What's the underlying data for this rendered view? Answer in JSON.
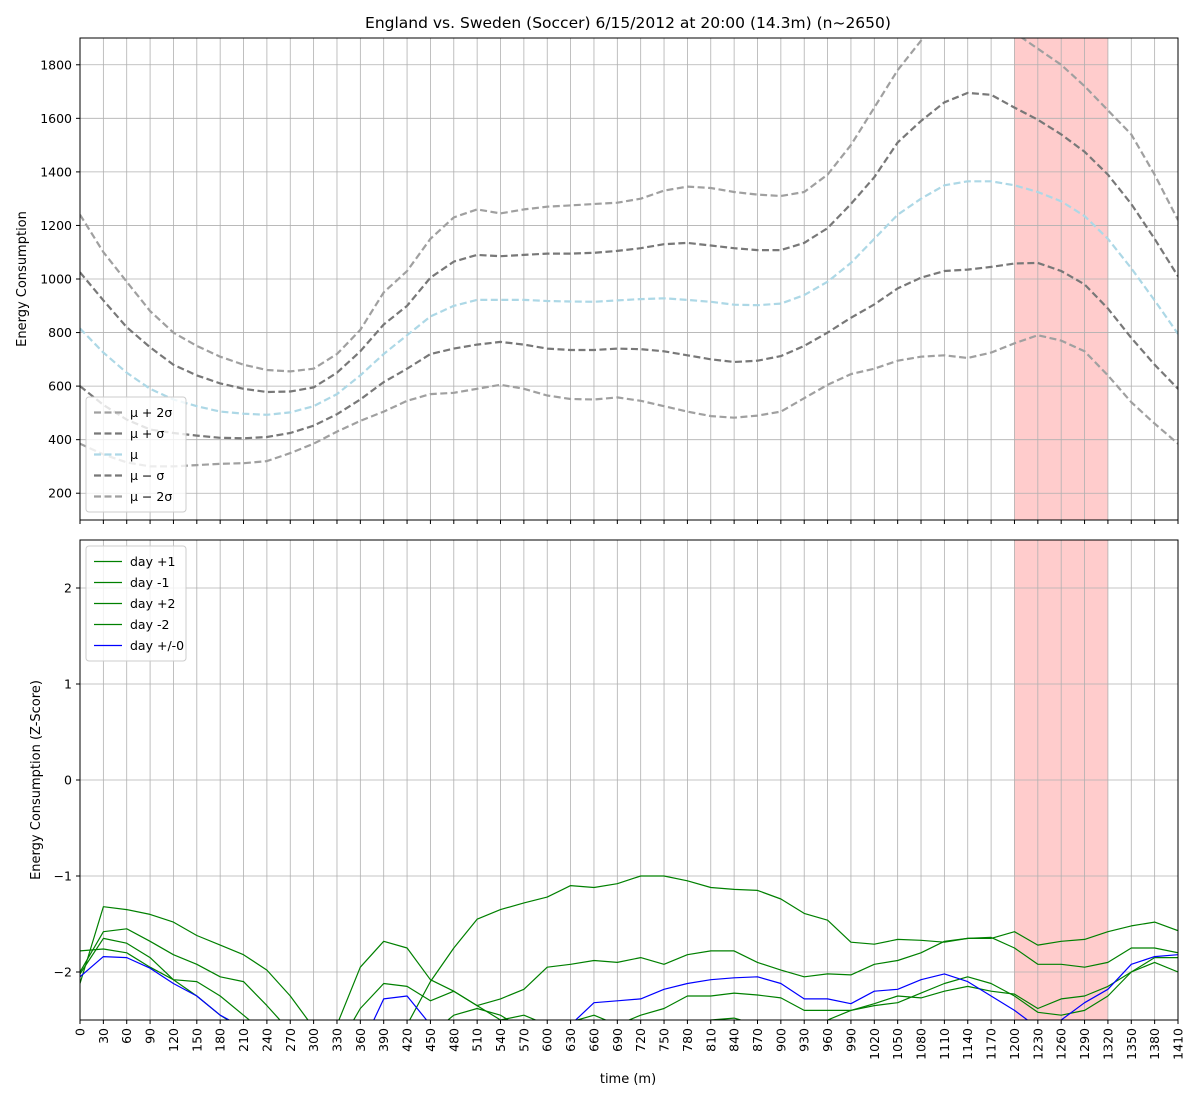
{
  "chart_data": [
    {
      "type": "line",
      "title": "England vs. Sweden (Soccer) 6/15/2012 at 20:00 (14.3m) (n~2650)",
      "xlabel": "",
      "ylabel": "Energy Consumption",
      "xlim": [
        0,
        1410
      ],
      "ylim": [
        100,
        1900
      ],
      "yticks": [
        200,
        400,
        600,
        800,
        1000,
        1200,
        1400,
        1600,
        1800
      ],
      "grid": true,
      "legend_position": "lower-left",
      "highlight_span": [
        1200,
        1320
      ],
      "x": [
        0,
        30,
        60,
        90,
        120,
        150,
        180,
        210,
        240,
        270,
        300,
        330,
        360,
        390,
        420,
        450,
        480,
        510,
        540,
        570,
        600,
        630,
        660,
        690,
        720,
        750,
        780,
        810,
        840,
        870,
        900,
        930,
        960,
        990,
        1020,
        1050,
        1080,
        1110,
        1140,
        1170,
        1200,
        1230,
        1260,
        1290,
        1320,
        1350,
        1380,
        1410
      ],
      "series": [
        {
          "name": "μ + 2σ",
          "color": "#a0a0a0",
          "style": "dashed",
          "values": [
            1240,
            1100,
            990,
            880,
            800,
            750,
            710,
            680,
            660,
            655,
            665,
            720,
            810,
            950,
            1030,
            1150,
            1230,
            1260,
            1245,
            1260,
            1270,
            1275,
            1280,
            1285,
            1300,
            1330,
            1345,
            1340,
            1325,
            1315,
            1310,
            1325,
            1390,
            1500,
            1640,
            1780,
            1890,
            1980,
            2040,
            2030,
            1920,
            1860,
            1800,
            1720,
            1630,
            1540,
            1390,
            1220
          ]
        },
        {
          "name": "μ + σ",
          "color": "#787878",
          "style": "dashed",
          "values": [
            1025,
            920,
            820,
            745,
            680,
            640,
            610,
            590,
            578,
            580,
            595,
            650,
            730,
            830,
            900,
            1005,
            1065,
            1090,
            1085,
            1090,
            1095,
            1095,
            1098,
            1105,
            1115,
            1130,
            1135,
            1125,
            1115,
            1108,
            1108,
            1135,
            1190,
            1280,
            1380,
            1510,
            1590,
            1660,
            1695,
            1688,
            1640,
            1595,
            1540,
            1475,
            1390,
            1280,
            1150,
            1010
          ]
        },
        {
          "name": "μ",
          "color": "#add8e6",
          "style": "dashed",
          "values": [
            815,
            725,
            650,
            590,
            550,
            525,
            505,
            497,
            493,
            502,
            525,
            570,
            640,
            720,
            790,
            860,
            900,
            922,
            922,
            922,
            918,
            916,
            915,
            920,
            925,
            928,
            922,
            915,
            904,
            902,
            908,
            940,
            990,
            1060,
            1150,
            1240,
            1300,
            1350,
            1365,
            1365,
            1350,
            1325,
            1290,
            1235,
            1150,
            1040,
            920,
            795
          ]
        },
        {
          "name": "μ − σ",
          "color": "#787878",
          "style": "dashed",
          "values": [
            600,
            530,
            475,
            438,
            425,
            415,
            407,
            405,
            410,
            425,
            452,
            495,
            550,
            615,
            665,
            720,
            740,
            755,
            765,
            755,
            740,
            735,
            735,
            740,
            738,
            730,
            715,
            700,
            690,
            695,
            712,
            750,
            800,
            855,
            905,
            965,
            1005,
            1030,
            1035,
            1045,
            1058,
            1060,
            1030,
            980,
            890,
            780,
            680,
            590
          ]
        },
        {
          "name": "μ − 2σ",
          "color": "#a0a0a0",
          "style": "dashed",
          "values": [
            385,
            345,
            315,
            300,
            300,
            305,
            310,
            312,
            320,
            350,
            385,
            430,
            470,
            505,
            545,
            570,
            575,
            590,
            605,
            590,
            565,
            552,
            550,
            558,
            545,
            525,
            505,
            488,
            482,
            490,
            505,
            555,
            605,
            645,
            665,
            695,
            710,
            715,
            705,
            725,
            760,
            790,
            770,
            730,
            640,
            540,
            460,
            385
          ]
        }
      ]
    },
    {
      "type": "line",
      "title": "",
      "xlabel": "time (m)",
      "ylabel": "Energy Consumption (Z-Score)",
      "xlim": [
        0,
        1410
      ],
      "ylim": [
        -2.5,
        2.5
      ],
      "yticks": [
        -2,
        -1,
        0,
        1,
        2
      ],
      "xticks": [
        0,
        30,
        60,
        90,
        120,
        150,
        180,
        210,
        240,
        270,
        300,
        330,
        360,
        390,
        420,
        450,
        480,
        510,
        540,
        570,
        600,
        630,
        660,
        690,
        720,
        750,
        780,
        810,
        840,
        870,
        900,
        930,
        960,
        990,
        1020,
        1050,
        1080,
        1110,
        1140,
        1170,
        1200,
        1230,
        1260,
        1290,
        1320,
        1350,
        1380,
        1410
      ],
      "xtick_labels": [
        "0",
        "30",
        "60",
        "90",
        "120",
        "150",
        "180",
        "210",
        "240",
        "270",
        "300",
        "330",
        "360",
        "390",
        "420",
        "450",
        "480",
        "510",
        "540",
        "570",
        "600",
        "630",
        "660",
        "690",
        "720",
        "750",
        "780",
        "810",
        "840",
        "870",
        "900",
        "930",
        "960",
        "990",
        "1020",
        "1050",
        "1080",
        "1110",
        "1140",
        "1170",
        "1200",
        "1230",
        "1260",
        "1290",
        "1320",
        "1350",
        "1380",
        "1410"
      ],
      "grid": true,
      "legend_position": "upper-left",
      "highlight_span": [
        1200,
        1320
      ],
      "x": [
        0,
        30,
        60,
        90,
        120,
        150,
        180,
        210,
        240,
        270,
        300,
        330,
        360,
        390,
        420,
        450,
        480,
        510,
        540,
        570,
        600,
        630,
        660,
        690,
        720,
        750,
        780,
        810,
        840,
        870,
        900,
        930,
        960,
        990,
        1020,
        1050,
        1080,
        1110,
        1140,
        1170,
        1200,
        1230,
        1260,
        1290,
        1320,
        1350,
        1380,
        1410
      ],
      "series": [
        {
          "name": "day +1",
          "color": "#008000",
          "values": [
            -1.78,
            -1.76,
            -1.8,
            -1.95,
            -2.08,
            -2.25,
            -2.45,
            -2.6,
            -2.8,
            -2.9,
            -2.95,
            -2.8,
            -2.38,
            -2.12,
            -2.15,
            -2.3,
            -2.2,
            -2.35,
            -2.5,
            -2.45,
            -2.55,
            -2.52,
            -2.45,
            -2.55,
            -2.45,
            -2.38,
            -2.25,
            -2.25,
            -2.22,
            -2.24,
            -2.27,
            -2.4,
            -2.4,
            -2.4,
            -2.33,
            -2.25,
            -2.27,
            -2.2,
            -2.15,
            -2.2,
            -2.23,
            -2.38,
            -2.28,
            -2.25,
            -2.15,
            -2.0,
            -1.9,
            -2.0
          ]
        },
        {
          "name": "day -1",
          "color": "#008000",
          "values": [
            -2.12,
            -1.32,
            -1.35,
            -1.4,
            -1.48,
            -1.62,
            -1.72,
            -1.82,
            -1.98,
            -2.25,
            -2.58,
            -2.55,
            -1.95,
            -1.68,
            -1.75,
            -2.08,
            -2.2,
            -2.35,
            -2.28,
            -2.18,
            -1.95,
            -1.92,
            -1.88,
            -1.9,
            -1.85,
            -1.92,
            -1.82,
            -1.78,
            -1.78,
            -1.9,
            -1.98,
            -2.05,
            -2.02,
            -2.03,
            -1.92,
            -1.88,
            -1.8,
            -1.68,
            -1.65,
            -1.65,
            -1.58,
            -1.72,
            -1.68,
            -1.66,
            -1.58,
            -1.52,
            -1.48,
            -1.57
          ]
        },
        {
          "name": "day +2",
          "color": "#008000",
          "values": [
            -2.0,
            -1.58,
            -1.55,
            -1.68,
            -1.82,
            -1.92,
            -2.05,
            -2.1,
            -2.35,
            -2.62,
            -2.75,
            -2.9,
            -2.9,
            -2.8,
            -2.55,
            -2.1,
            -1.75,
            -1.45,
            -1.35,
            -1.28,
            -1.22,
            -1.1,
            -1.12,
            -1.08,
            -1.0,
            -1.0,
            -1.05,
            -1.12,
            -1.14,
            -1.15,
            -1.24,
            -1.39,
            -1.46,
            -1.69,
            -1.71,
            -1.66,
            -1.67,
            -1.69,
            -1.65,
            -1.64,
            -1.75,
            -1.92,
            -1.92,
            -1.95,
            -1.9,
            -1.75,
            -1.75,
            -1.8
          ]
        },
        {
          "name": "day -2",
          "color": "#008000",
          "values": [
            -2.02,
            -1.65,
            -1.7,
            -1.85,
            -2.08,
            -2.1,
            -2.25,
            -2.45,
            -2.65,
            -2.85,
            -2.95,
            -2.85,
            -2.9,
            -2.95,
            -2.7,
            -2.65,
            -2.45,
            -2.38,
            -2.45,
            -2.6,
            -2.7,
            -2.68,
            -2.62,
            -2.62,
            -2.58,
            -2.58,
            -2.55,
            -2.5,
            -2.48,
            -2.55,
            -2.6,
            -2.6,
            -2.5,
            -2.4,
            -2.35,
            -2.32,
            -2.22,
            -2.12,
            -2.05,
            -2.12,
            -2.25,
            -2.42,
            -2.45,
            -2.4,
            -2.25,
            -2.0,
            -1.85,
            -1.85
          ]
        },
        {
          "name": "day +/-0",
          "color": "#0000ff",
          "values": [
            -2.05,
            -1.84,
            -1.85,
            -1.96,
            -2.12,
            -2.25,
            -2.45,
            -2.58,
            -2.8,
            -2.9,
            -2.95,
            -2.9,
            -2.8,
            -2.28,
            -2.25,
            -2.55,
            -2.75,
            -2.85,
            -2.8,
            -2.78,
            -2.7,
            -2.55,
            -2.32,
            -2.3,
            -2.28,
            -2.18,
            -2.12,
            -2.08,
            -2.06,
            -2.05,
            -2.12,
            -2.28,
            -2.28,
            -2.33,
            -2.2,
            -2.18,
            -2.08,
            -2.02,
            -2.1,
            -2.25,
            -2.4,
            -2.58,
            -2.5,
            -2.32,
            -2.18,
            -1.92,
            -1.84,
            -1.82
          ]
        }
      ]
    }
  ]
}
